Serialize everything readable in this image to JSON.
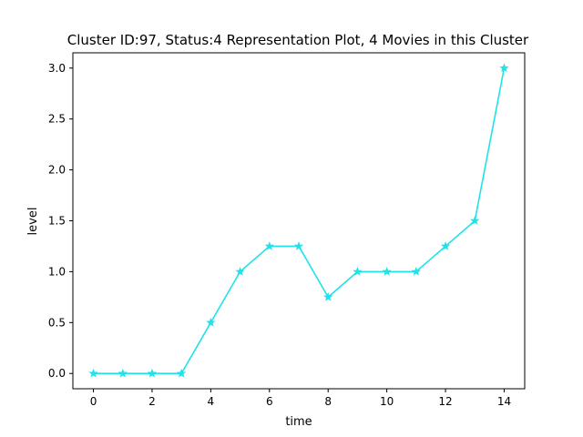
{
  "chart_data": {
    "type": "line",
    "title": "Cluster ID:97, Status:4 Representation Plot, 4 Movies in this Cluster",
    "xlabel": "time",
    "ylabel": "level",
    "xlim": [
      -0.7,
      14.7
    ],
    "ylim": [
      -0.15,
      3.15
    ],
    "xticks": [
      0,
      2,
      4,
      6,
      8,
      10,
      12,
      14
    ],
    "xtick_labels": [
      "0",
      "2",
      "4",
      "6",
      "8",
      "10",
      "12",
      "14"
    ],
    "yticks": [
      0.0,
      0.5,
      1.0,
      1.5,
      2.0,
      2.5,
      3.0
    ],
    "ytick_labels": [
      "0.0",
      "0.5",
      "1.0",
      "1.5",
      "2.0",
      "2.5",
      "3.0"
    ],
    "grid": false,
    "legend": "none",
    "series": [
      {
        "color": "#1ee3e8",
        "marker": "star",
        "x": [
          0,
          1,
          2,
          3,
          4,
          5,
          6,
          7,
          8,
          9,
          10,
          11,
          12,
          13,
          14
        ],
        "y": [
          0,
          0,
          0,
          0,
          0.5,
          1.0,
          1.25,
          1.25,
          0.75,
          1.0,
          1.0,
          1.0,
          1.25,
          1.5,
          3.0
        ]
      }
    ]
  }
}
